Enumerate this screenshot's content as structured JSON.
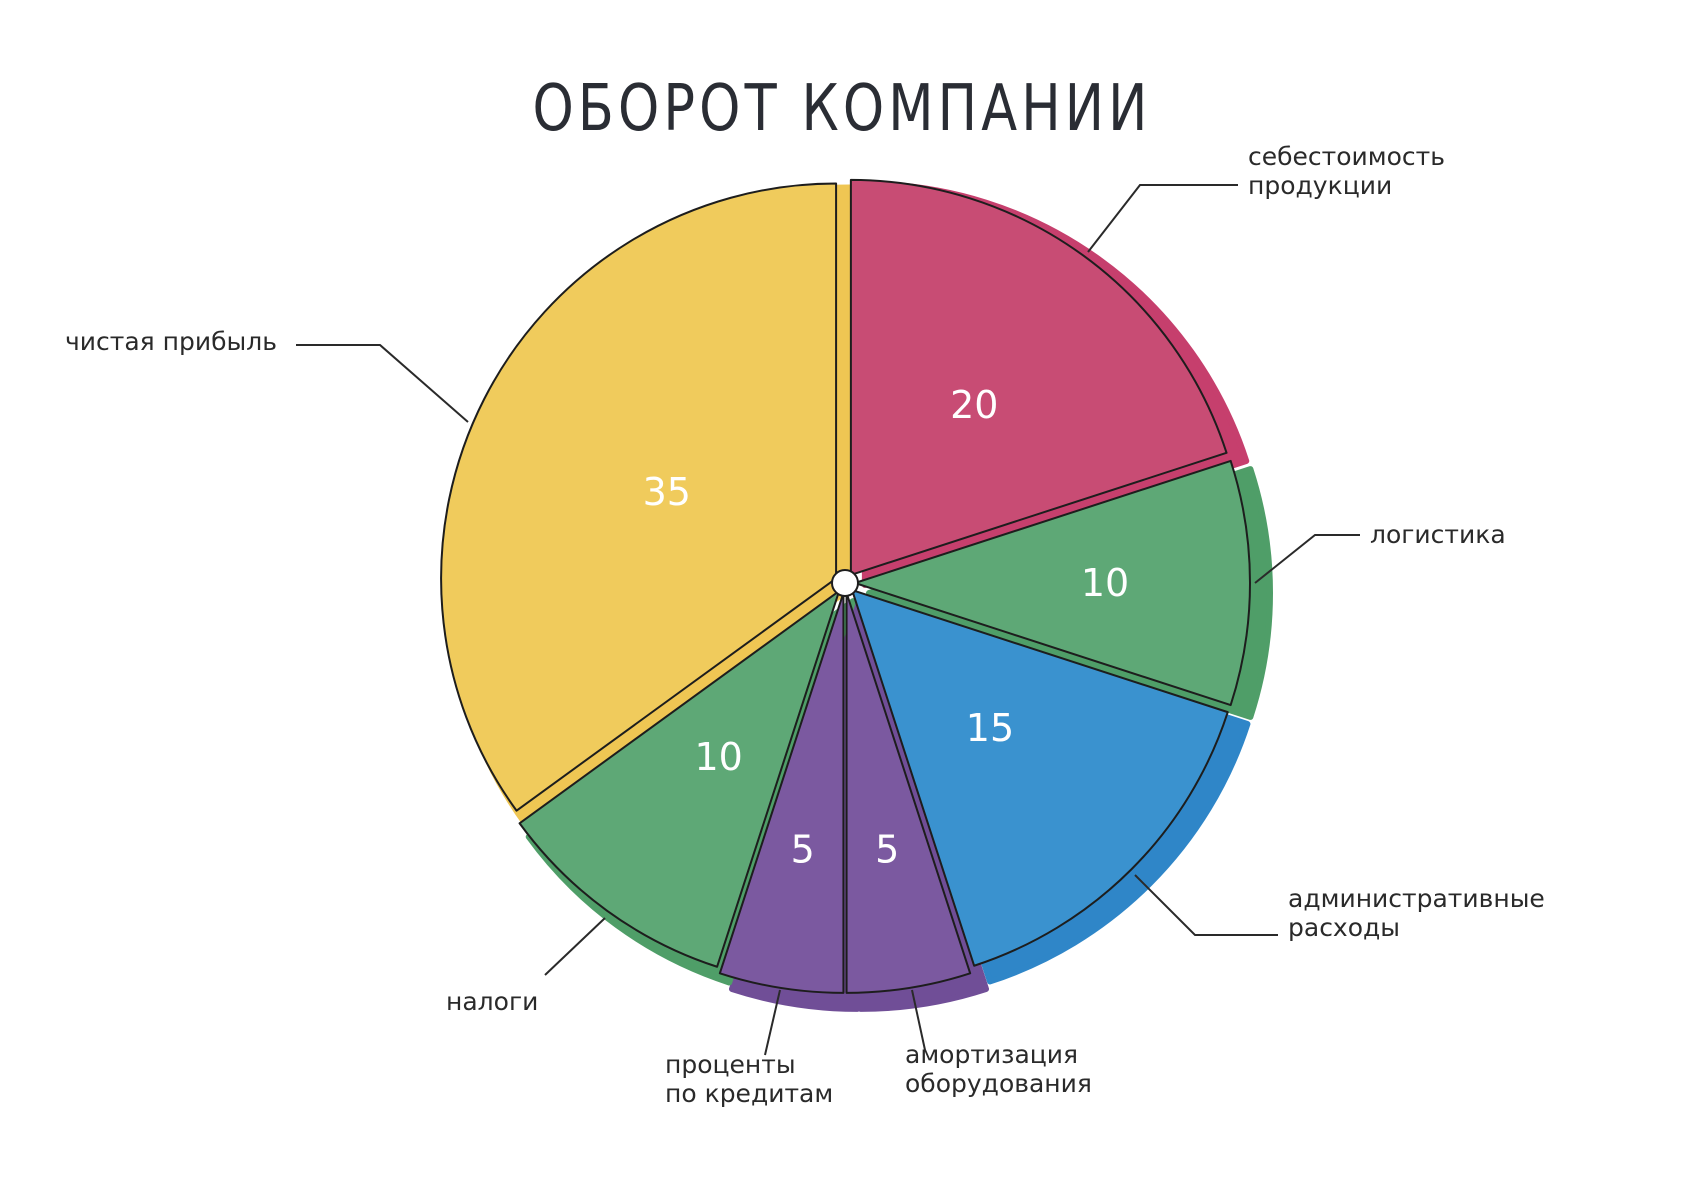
{
  "chart_data": {
    "type": "pie",
    "title": "ОБОРОТ КОМПАНИИ",
    "slices": [
      {
        "label": [
          "себестоимость",
          "продукции"
        ],
        "value": 20,
        "display": "20",
        "color": "#c84c74",
        "shadow": "#c63f6d"
      },
      {
        "label": [
          "логистика"
        ],
        "value": 10,
        "display": "10",
        "color": "#5ea876",
        "shadow": "#4f9e68"
      },
      {
        "label": [
          "административные",
          "расходы"
        ],
        "value": 15,
        "display": "15",
        "color": "#3a92cf",
        "shadow": "#2f86c8"
      },
      {
        "label": [
          "амортизация",
          "оборудования"
        ],
        "value": 5,
        "display": "5",
        "color": "#7b59a0",
        "shadow": "#704e97"
      },
      {
        "label": [
          "проценты",
          "по кредитам"
        ],
        "value": 5,
        "display": "5",
        "color": "#7b59a0",
        "shadow": "#704e97"
      },
      {
        "label": [
          "налоги"
        ],
        "value": 10,
        "display": "10",
        "color": "#5ea876",
        "shadow": "#4f9e68"
      },
      {
        "label": [
          "чистая прибыль"
        ],
        "value": 35,
        "display": "35",
        "color": "#f0cb5c",
        "shadow": "#efc653"
      }
    ],
    "start_angle_deg": 90,
    "direction": "clockwise",
    "legend": "none (callout labels)"
  }
}
